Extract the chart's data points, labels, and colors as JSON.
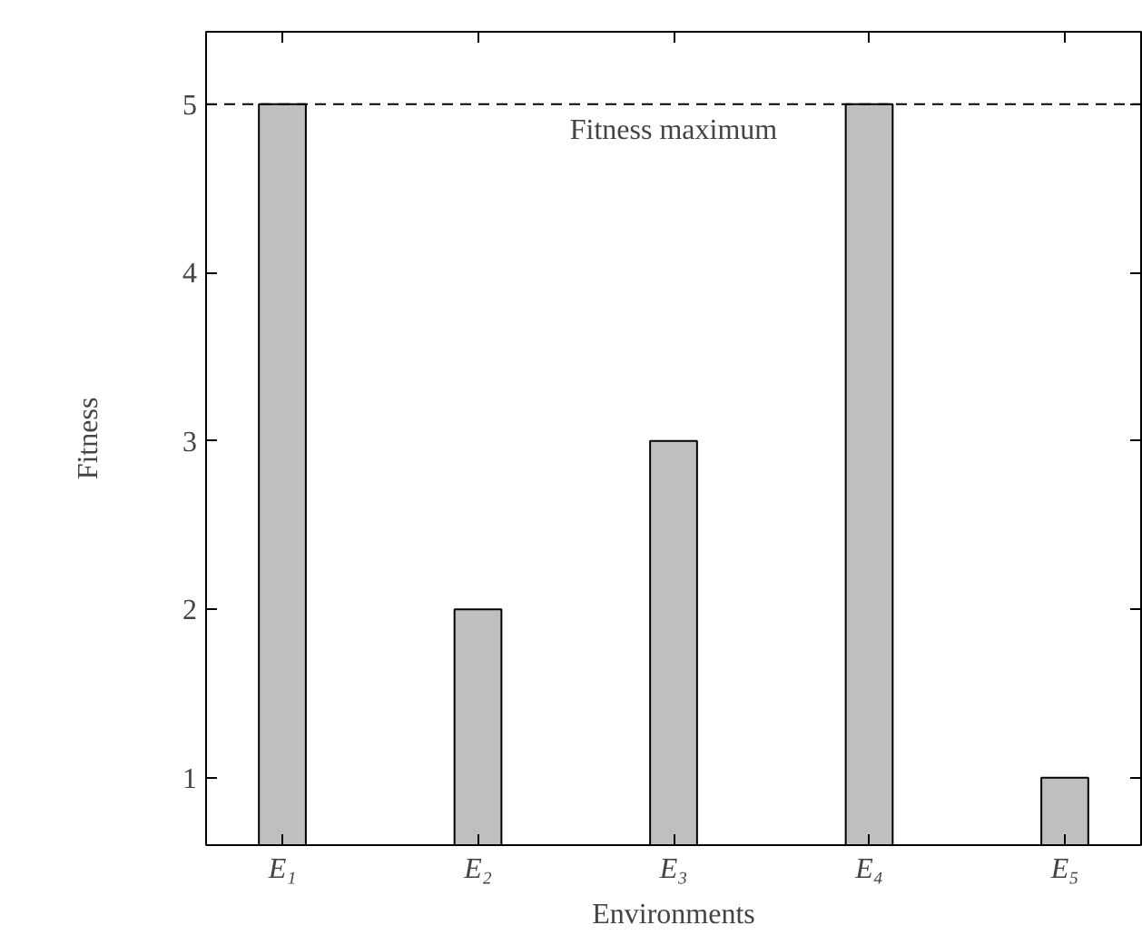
{
  "chart_data": {
    "type": "bar",
    "xlabel": "Environments",
    "ylabel": "Fitness",
    "categories": [
      "E₁",
      "E₂",
      "E₃",
      "E₄",
      "E₅"
    ],
    "values": [
      5,
      2,
      3,
      5,
      1
    ],
    "color": "#bfbfbf",
    "ylim": [
      0.6,
      5.43
    ],
    "yticks": [
      1,
      2,
      3,
      4,
      5
    ],
    "grid": false,
    "ref_lines": [
      {
        "axis": "y",
        "value": 5,
        "label": "Fitness maximum",
        "line_style": "dashed",
        "color": "#000000"
      }
    ]
  }
}
